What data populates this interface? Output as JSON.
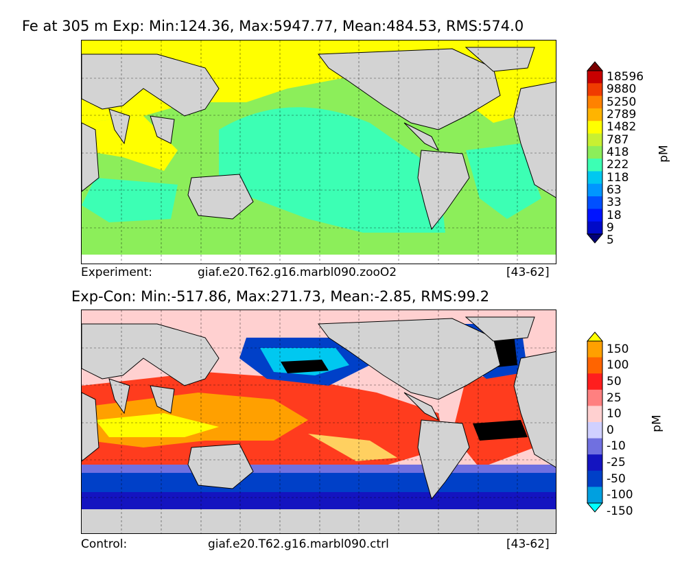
{
  "top": {
    "title": "Fe at 305 m Exp: Min:124.36, Max:5947.77, Mean:484.53, RMS:574.0",
    "caption_left": "Experiment:",
    "caption_case": "giaf.e20.T62.g16.marbl090.zooO2",
    "caption_years": "[43-62]",
    "colorbar": {
      "unit": "pM",
      "levels": [
        "18596",
        "9880",
        "5250",
        "2789",
        "1482",
        "787",
        "418",
        "222",
        "118",
        "63",
        "33",
        "18",
        "9",
        "5"
      ],
      "colors": [
        "#7a0000",
        "#c80000",
        "#f03c00",
        "#ff8200",
        "#ffb400",
        "#ffff00",
        "#c8f032",
        "#8cee5a",
        "#3cffb4",
        "#00c8f0",
        "#0096ff",
        "#0050ff",
        "#0014ff",
        "#000ac8",
        "#000078"
      ]
    }
  },
  "bottom": {
    "title": "Exp-Con: Min:-517.86, Max:271.73, Mean:-2.85, RMS:99.2",
    "caption_left": "Control:",
    "caption_case": "giaf.e20.T62.g16.marbl090.ctrl",
    "caption_years": "[43-62]",
    "colorbar": {
      "unit": "pM",
      "levels": [
        "150",
        "100",
        "50",
        "25",
        "10",
        "0",
        "-10",
        "-25",
        "-50",
        "-100",
        "-150"
      ],
      "colors": [
        "#ffff00",
        "#ffa000",
        "#ff6400",
        "#ff1e1e",
        "#ff8080",
        "#ffd0d0",
        "#d0d0ff",
        "#7070e0",
        "#1414c0",
        "#0040c8",
        "#00a0e0",
        "#00ffff"
      ]
    }
  },
  "land_color": "#d3d3d3"
}
